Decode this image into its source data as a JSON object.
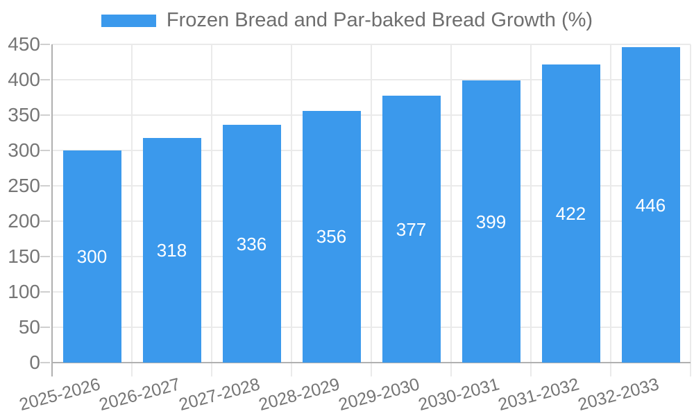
{
  "chart_data": {
    "type": "bar",
    "title": "Frozen Bread and Par-baked Bread Growth (%)",
    "categories": [
      "2025-2026",
      "2026-2027",
      "2027-2028",
      "2028-2029",
      "2029-2030",
      "2030-2031",
      "2031-2032",
      "2032-2033"
    ],
    "series": [
      {
        "name": "Frozen Bread and Par-baked Bread Growth (%)",
        "color": "#3b99ec",
        "values": [
          300,
          318,
          336,
          356,
          377,
          399,
          422,
          446
        ]
      }
    ],
    "xlabel": "",
    "ylabel": "",
    "ylim": [
      0,
      450
    ],
    "yticks": [
      0,
      50,
      100,
      150,
      200,
      250,
      300,
      350,
      400,
      450
    ],
    "grid": true,
    "legend_position": "top",
    "bar_value_labels_visible": true
  },
  "colors": {
    "bar": "#3b99ec",
    "grid": "#eaeaea",
    "axis": "#b0b0b0",
    "tick": "#cfcfcf",
    "axis_label_text": "#757575",
    "legend_text": "#6e6e6e",
    "bar_label_text": "#ffffff",
    "background": "#ffffff"
  }
}
